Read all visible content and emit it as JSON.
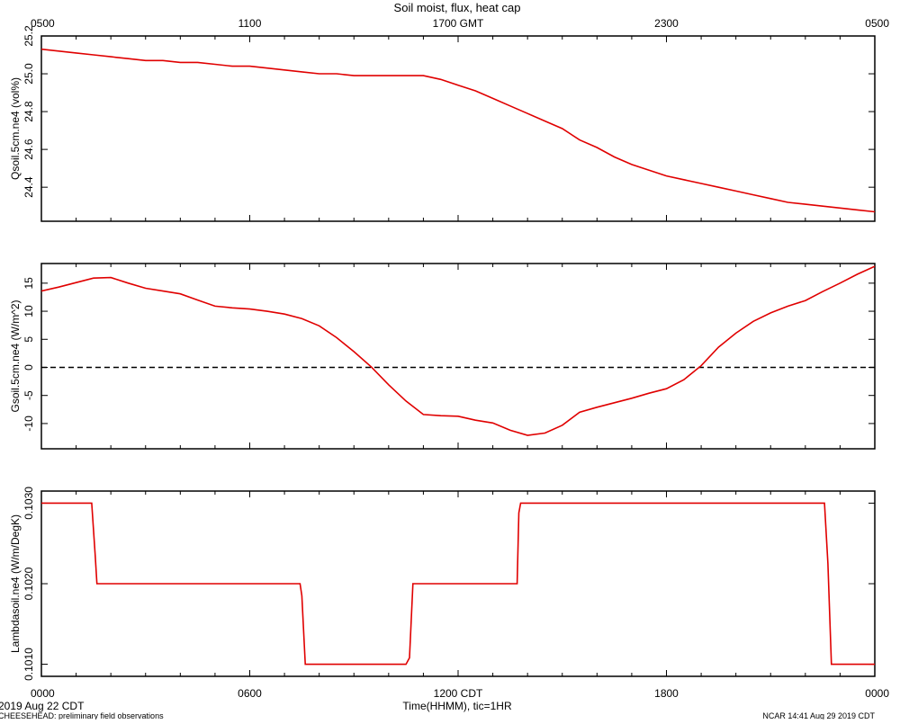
{
  "title": "Soil moist, flux, heat cap",
  "top_axis": {
    "ticks": [
      "0500",
      "1100",
      "1700 GMT",
      "2300",
      "0500"
    ]
  },
  "bottom_axis": {
    "ticks": [
      "0000",
      "0600",
      "1200 CDT",
      "1800",
      "0000"
    ],
    "label": "Time(HHMM), tic=1HR"
  },
  "footer": {
    "date": "2019 Aug 22 CDT",
    "project": "CHEESEHEAD: preliminary field observations",
    "credit": "NCAR 14:41 Aug 29 2019 CDT"
  },
  "colors": {
    "series": "#e00000",
    "frame": "#000000",
    "zero_line": "#000000"
  },
  "chart_data": [
    {
      "type": "line",
      "ylabel": "Qsoil.5cm.ne4 (vol%)",
      "ylim": [
        24.22,
        25.2
      ],
      "yticks": [
        24.4,
        24.6,
        24.8,
        25.0,
        25.2
      ],
      "ytick_labels": [
        "24.4",
        "24.6",
        "24.8",
        "25.0",
        "25.2"
      ],
      "x_hours": [
        0,
        0.5,
        1,
        1.5,
        2,
        2.5,
        3,
        3.5,
        4,
        4.5,
        5,
        5.5,
        6,
        6.5,
        7,
        7.5,
        8,
        8.5,
        9,
        9.5,
        10,
        10.5,
        11,
        11.5,
        12,
        12.5,
        13,
        13.5,
        14,
        14.5,
        15,
        15.5,
        16,
        16.5,
        17,
        17.5,
        18,
        18.5,
        19,
        19.5,
        20,
        20.5,
        21,
        21.5,
        22,
        22.5,
        23,
        23.5,
        24
      ],
      "y": [
        25.13,
        25.12,
        25.11,
        25.1,
        25.09,
        25.08,
        25.07,
        25.07,
        25.06,
        25.06,
        25.05,
        25.04,
        25.04,
        25.03,
        25.02,
        25.01,
        25.0,
        25.0,
        24.99,
        24.99,
        24.99,
        24.99,
        24.99,
        24.97,
        24.94,
        24.91,
        24.87,
        24.83,
        24.79,
        24.75,
        24.71,
        24.65,
        24.61,
        24.56,
        24.52,
        24.49,
        24.46,
        24.44,
        24.42,
        24.4,
        24.38,
        24.36,
        24.34,
        24.32,
        24.31,
        24.3,
        24.29,
        24.28,
        24.27
      ]
    },
    {
      "type": "line",
      "ylabel": "Gsoil.5cm.ne4 (W/m^2)",
      "ylim": [
        -14.5,
        18.5
      ],
      "yticks": [
        -10,
        -5,
        0,
        5,
        10,
        15
      ],
      "ytick_labels": [
        "-10",
        "-5",
        "0",
        "5",
        "10",
        "15"
      ],
      "reference_line": 0,
      "x_hours": [
        0,
        0.5,
        1,
        1.5,
        2,
        2.5,
        3,
        3.5,
        4,
        4.5,
        5,
        5.5,
        6,
        6.5,
        7,
        7.5,
        8,
        8.5,
        9,
        9.5,
        10,
        10.5,
        11,
        11.5,
        12,
        12.5,
        13,
        13.5,
        14,
        14.5,
        15,
        15.5,
        16,
        16.5,
        17,
        17.5,
        18,
        18.5,
        19,
        19.5,
        20,
        20.5,
        21,
        21.5,
        22,
        22.5,
        23,
        23.5,
        24
      ],
      "y": [
        13.6,
        14.3,
        15.1,
        15.9,
        16.0,
        15.0,
        14.1,
        13.6,
        13.1,
        12.0,
        10.9,
        10.6,
        10.4,
        10.0,
        9.5,
        8.7,
        7.4,
        5.3,
        2.8,
        0.1,
        -3.1,
        -6.0,
        -8.4,
        -8.6,
        -8.7,
        -9.4,
        -9.9,
        -11.2,
        -12.1,
        -11.7,
        -10.3,
        -8.0,
        -7.1,
        -6.3,
        -5.5,
        -4.6,
        -3.8,
        -2.2,
        0.3,
        3.6,
        6.1,
        8.2,
        9.7,
        10.9,
        11.9,
        13.5,
        15.0,
        16.6,
        18.0
      ]
    },
    {
      "type": "line",
      "ylabel": "Lambdasoil.ne4 (W/m/DegK)",
      "ylim": [
        0.10085,
        0.10315
      ],
      "yticks": [
        0.101,
        0.102,
        0.103
      ],
      "ytick_labels": [
        "0.1010",
        "0.1020",
        "0.1030"
      ],
      "x_hours": [
        0,
        1.45,
        1.55,
        1.6,
        7.45,
        7.5,
        7.6,
        10.5,
        10.6,
        10.7,
        13.7,
        13.75,
        13.8,
        22.55,
        22.65,
        22.75,
        24
      ],
      "y": [
        0.103,
        0.103,
        0.10235,
        0.102,
        0.102,
        0.10185,
        0.101,
        0.101,
        0.10108,
        0.102,
        0.102,
        0.10288,
        0.103,
        0.103,
        0.10225,
        0.101,
        0.101
      ]
    }
  ]
}
